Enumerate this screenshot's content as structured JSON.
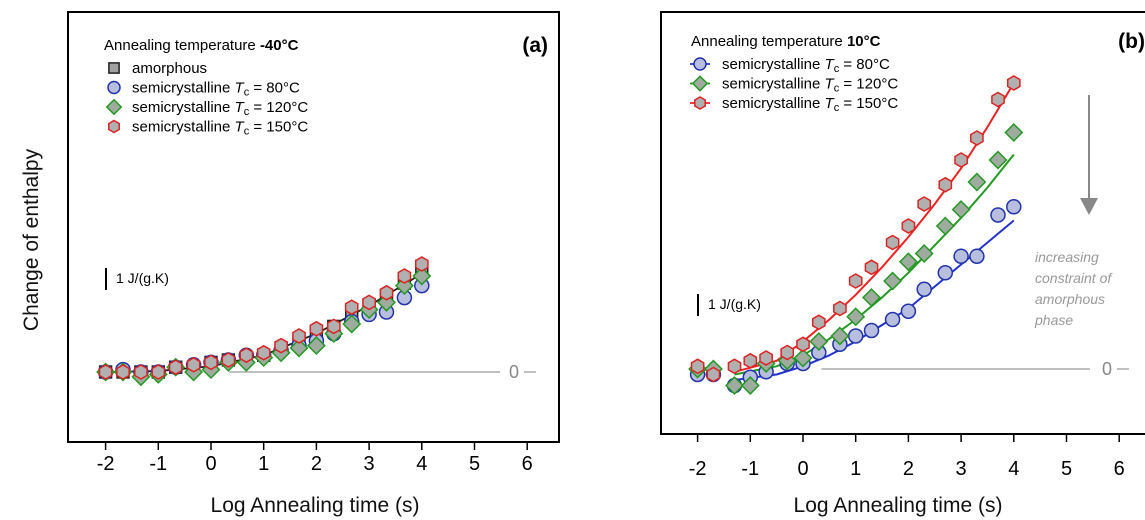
{
  "figure": {
    "ylabel": "Change of enthalpy",
    "xlabel": "Log Annealing time (s)",
    "scale_bar_label": "1 J/(g.K)",
    "zero_label": "0"
  },
  "chart_data": [
    {
      "type": "scatter",
      "panel_label": "(a)",
      "legend_title_prefix": "Annealing temperature ",
      "legend_title_value": "-40°C",
      "legend_placement": "top-left",
      "xlabel": "Log Annealing time (s)",
      "ylabel": "Change of enthalpy",
      "xlim": [
        -2.5,
        6.3
      ],
      "xticks": [
        "-2",
        "-1",
        "0",
        "1",
        "2",
        "3",
        "4",
        "5",
        "6"
      ],
      "ylim": [
        -1.5,
        5.5
      ],
      "scale_bar": "1 J/(g.K)",
      "zero_line_label": "0",
      "grid": false,
      "series": [
        {
          "name": "amorphous",
          "marker": "square",
          "color": "#a0a0a0",
          "edge": "#202020",
          "x": [
            -2.0,
            -1.67,
            -1.33,
            -1.0,
            -0.67,
            -0.33,
            0.0,
            0.33,
            0.67,
            1.0,
            1.33,
            1.67,
            2.0,
            2.33,
            2.67,
            3.0,
            3.33,
            3.67,
            4.0
          ],
          "y": [
            0.0,
            0.0,
            0.0,
            0.0,
            0.1,
            0.1,
            0.2,
            0.25,
            0.3,
            0.35,
            0.5,
            0.6,
            0.75,
            0.95,
            1.2,
            1.4,
            1.6,
            1.85,
            2.2
          ]
        },
        {
          "name": "semicrystalline Tᴄ = 80°C",
          "marker": "circle",
          "color": "#b8bede",
          "edge": "#2233aa",
          "x": [
            -2.0,
            -1.67,
            -1.33,
            -1.0,
            -0.67,
            -0.33,
            0.0,
            0.33,
            0.67,
            1.0,
            1.33,
            1.67,
            2.0,
            2.33,
            2.67,
            3.0,
            3.33,
            3.67,
            4.0
          ],
          "y": [
            0.0,
            0.05,
            0.0,
            0.0,
            0.1,
            0.15,
            0.2,
            0.25,
            0.35,
            0.35,
            0.45,
            0.55,
            0.65,
            0.8,
            1.05,
            1.2,
            1.25,
            1.55,
            1.8
          ]
        },
        {
          "name": "semicrystalline Tᴄ = 120°C",
          "marker": "diamond",
          "color": "#a0aba0",
          "edge": "#229922",
          "x": [
            -2.0,
            -1.67,
            -1.33,
            -1.0,
            -0.67,
            -0.33,
            0.0,
            0.33,
            0.67,
            1.0,
            1.33,
            1.67,
            2.0,
            2.33,
            2.67,
            3.0,
            3.33,
            3.67,
            4.0
          ],
          "y": [
            0.0,
            0.0,
            -0.1,
            -0.05,
            0.1,
            0.0,
            0.05,
            0.2,
            0.2,
            0.3,
            0.4,
            0.5,
            0.55,
            0.8,
            1.0,
            1.3,
            1.45,
            1.8,
            2.0
          ]
        },
        {
          "name": "semicrystalline Tᴄ = 150°C",
          "marker": "hexagon",
          "color": "#b0b0b0",
          "edge": "#dd2222",
          "x": [
            -2.0,
            -1.67,
            -1.33,
            -1.0,
            -0.67,
            -0.33,
            0.0,
            0.33,
            0.67,
            1.0,
            1.33,
            1.67,
            2.0,
            2.33,
            2.67,
            3.0,
            3.33,
            3.67,
            4.0
          ],
          "y": [
            0.0,
            0.0,
            0.0,
            0.0,
            0.1,
            0.15,
            0.2,
            0.25,
            0.35,
            0.4,
            0.55,
            0.75,
            0.9,
            0.95,
            1.35,
            1.45,
            1.65,
            2.0,
            2.25
          ]
        }
      ],
      "fit_line": {
        "color": "#202020",
        "x": [
          -2.0,
          -1.0,
          0.0,
          1.0,
          2.0,
          3.0,
          4.0
        ],
        "y": [
          0.0,
          0.02,
          0.12,
          0.35,
          0.8,
          1.38,
          2.05
        ]
      }
    },
    {
      "type": "scatter",
      "panel_label": "(b)",
      "legend_title_prefix": "Annealing temperature ",
      "legend_title_value": "10°C",
      "legend_placement": "top-left",
      "xlabel": "Log Annealing time (s)",
      "xlim": [
        -2.5,
        6.3
      ],
      "xticks": [
        "-2",
        "-1",
        "0",
        "1",
        "2",
        "3",
        "4",
        "5",
        "6"
      ],
      "ylim": [
        -1.5,
        5.5
      ],
      "scale_bar": "1 J/(g.K)",
      "zero_line_label": "0",
      "annotation": [
        "increasing",
        "constraint of",
        "amorphous",
        "phase"
      ],
      "grid": false,
      "series": [
        {
          "name": "semicrystalline Tᴄ = 80°C",
          "marker": "circle",
          "color": "#b8bede",
          "edge": "#2233aa",
          "line": "#2233cc",
          "x": [
            -2.0,
            -1.7,
            -1.3,
            -1.0,
            -0.7,
            -0.3,
            0.0,
            0.3,
            0.7,
            1.0,
            1.3,
            1.7,
            2.0,
            2.3,
            2.7,
            3.0,
            3.3,
            3.7,
            4.0
          ],
          "y": [
            -0.1,
            -0.1,
            -0.3,
            -0.15,
            -0.05,
            0.1,
            0.1,
            0.3,
            0.45,
            0.6,
            0.7,
            0.9,
            1.05,
            1.45,
            1.75,
            2.05,
            2.05,
            2.8,
            2.95
          ],
          "fit": {
            "x": [
              -1.3,
              -0.5,
              0.0,
              0.5,
              1.0,
              1.5,
              2.0,
              2.5,
              3.0,
              3.5,
              4.0
            ],
            "y": [
              -0.2,
              -0.1,
              0.05,
              0.25,
              0.5,
              0.8,
              1.1,
              1.5,
              1.9,
              2.3,
              2.7
            ]
          }
        },
        {
          "name": "semicrystalline Tᴄ = 120°C",
          "marker": "diamond",
          "color": "#a0aba0",
          "edge": "#229922",
          "line": "#229922",
          "x": [
            -2.0,
            -1.7,
            -1.3,
            -1.0,
            -0.7,
            -0.3,
            0.0,
            0.3,
            0.7,
            1.0,
            1.3,
            1.7,
            2.0,
            2.3,
            2.7,
            3.0,
            3.3,
            3.7,
            4.0
          ],
          "y": [
            0.0,
            0.0,
            -0.3,
            -0.3,
            0.1,
            0.15,
            0.2,
            0.5,
            0.6,
            0.95,
            1.3,
            1.6,
            1.95,
            2.1,
            2.6,
            2.9,
            3.4,
            3.8,
            4.3
          ],
          "fit": {
            "x": [
              -1.3,
              -0.5,
              0.0,
              0.5,
              1.0,
              1.5,
              2.0,
              2.5,
              3.0,
              3.5,
              4.0
            ],
            "y": [
              -0.1,
              0.05,
              0.25,
              0.55,
              0.9,
              1.3,
              1.75,
              2.25,
              2.75,
              3.3,
              3.9
            ]
          }
        },
        {
          "name": "semicrystalline Tᴄ = 150°C",
          "marker": "hexagon",
          "color": "#b0b0b0",
          "edge": "#dd2222",
          "line": "#ee2222",
          "x": [
            -2.0,
            -1.7,
            -1.3,
            -1.0,
            -0.7,
            -0.3,
            0.0,
            0.3,
            0.7,
            1.0,
            1.3,
            1.7,
            2.0,
            2.3,
            2.7,
            3.0,
            3.3,
            3.7,
            4.0
          ],
          "y": [
            0.05,
            -0.1,
            0.05,
            0.15,
            0.2,
            0.3,
            0.45,
            0.85,
            1.1,
            1.6,
            1.85,
            2.3,
            2.6,
            3.0,
            3.35,
            3.8,
            4.2,
            4.9,
            5.2
          ],
          "fit": {
            "x": [
              -1.3,
              -0.5,
              0.0,
              0.5,
              1.0,
              1.5,
              2.0,
              2.5,
              3.0,
              3.5,
              4.0
            ],
            "y": [
              -0.05,
              0.15,
              0.5,
              0.9,
              1.35,
              1.85,
              2.4,
              3.0,
              3.65,
              4.4,
              5.2
            ]
          }
        }
      ]
    }
  ]
}
